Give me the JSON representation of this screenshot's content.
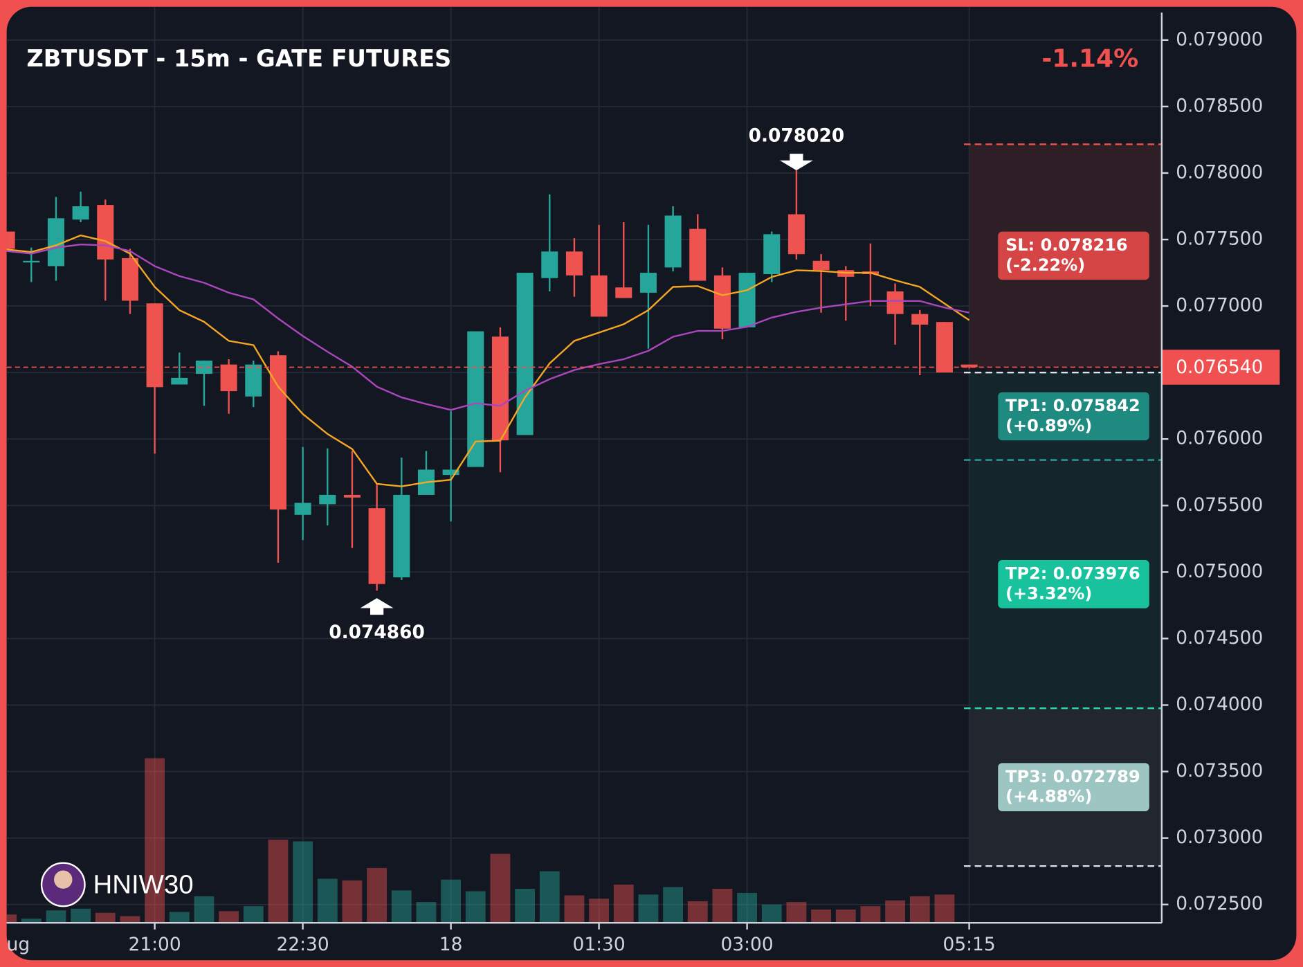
{
  "chart_data": {
    "type": "candlestick",
    "title": "ZBTUSDT - 15m - GATE FUTURES",
    "change": "-1.14%",
    "watermark": "HNIW30",
    "categories": [
      "ug",
      null,
      null,
      null,
      null,
      null,
      "21:00",
      null,
      null,
      null,
      null,
      null,
      "22:30",
      null,
      null,
      null,
      null,
      null,
      "18",
      null,
      null,
      null,
      null,
      null,
      "01:30",
      null,
      null,
      null,
      null,
      null,
      "03:00",
      null,
      null,
      null,
      null,
      null,
      null,
      null,
      null,
      "05:15"
    ],
    "candles": {
      "open": [
        0.07756,
        0.07733,
        0.0773,
        0.07765,
        0.07776,
        0.07736,
        0.07702,
        0.07641,
        0.07649,
        0.07656,
        0.07632,
        0.07663,
        0.07543,
        0.07551,
        0.07558,
        0.07548,
        0.07496,
        0.07558,
        0.07573,
        0.07579,
        0.07677,
        0.07603,
        0.07721,
        0.07741,
        0.07723,
        0.07714,
        0.0771,
        0.07729,
        0.07758,
        0.07723,
        0.07684,
        0.07724,
        0.07769,
        0.07734,
        0.07727,
        0.07726,
        0.07711,
        0.07694,
        0.07688,
        0.07656
      ],
      "high": [
        0.07756,
        0.07744,
        0.07782,
        0.07786,
        0.0778,
        0.07743,
        0.07702,
        0.07665,
        0.07659,
        0.0766,
        0.07659,
        0.07666,
        0.07594,
        0.07593,
        0.07591,
        0.07566,
        0.07586,
        0.07591,
        0.07621,
        0.07681,
        0.07684,
        0.07725,
        0.07784,
        0.07751,
        0.07761,
        0.07763,
        0.07761,
        0.07775,
        0.07769,
        0.07729,
        0.07725,
        0.07756,
        0.07802,
        0.07739,
        0.0773,
        0.07747,
        0.07717,
        0.07697,
        0.07688,
        0.07656
      ],
      "low": [
        0.07742,
        0.07718,
        0.07719,
        0.07763,
        0.07704,
        0.07694,
        0.07589,
        0.07641,
        0.07625,
        0.07619,
        0.07624,
        0.07507,
        0.07524,
        0.07535,
        0.07518,
        0.07486,
        0.07494,
        0.07558,
        0.07538,
        0.07579,
        0.07575,
        0.07603,
        0.07711,
        0.07707,
        0.07692,
        0.07706,
        0.07668,
        0.07726,
        0.07719,
        0.07675,
        0.07684,
        0.07718,
        0.07735,
        0.07695,
        0.07689,
        0.077,
        0.07671,
        0.07648,
        0.07653,
        0.07653
      ],
      "close": [
        0.07743,
        0.07734,
        0.07766,
        0.07775,
        0.07735,
        0.07704,
        0.07639,
        0.07646,
        0.07659,
        0.07636,
        0.07656,
        0.07547,
        0.07552,
        0.07558,
        0.07556,
        0.07491,
        0.07558,
        0.07577,
        0.07577,
        0.07681,
        0.07599,
        0.07725,
        0.07741,
        0.07723,
        0.07692,
        0.07706,
        0.07725,
        0.07768,
        0.07719,
        0.07683,
        0.07725,
        0.07754,
        0.07739,
        0.07727,
        0.07722,
        0.07724,
        0.07694,
        0.07686,
        0.0765,
        0.07654
      ]
    },
    "volume": [
      10,
      5,
      15,
      17,
      12,
      8,
      198,
      13,
      32,
      14,
      20,
      100,
      98,
      53,
      51,
      66,
      39,
      25,
      52,
      38,
      83,
      41,
      62,
      33,
      29,
      46,
      34,
      43,
      26,
      41,
      36,
      22,
      25,
      16,
      16,
      20,
      27,
      32,
      34,
      null
    ],
    "up_color": "#26a69a",
    "down_color": "#ef5350",
    "series": [
      {
        "color": "#f5a623",
        "values": [
          0.077425,
          0.077406,
          0.077456,
          0.077531,
          0.077488,
          0.077394,
          0.077144,
          0.076969,
          0.076881,
          0.076738,
          0.076706,
          0.076394,
          0.076188,
          0.076038,
          0.075925,
          0.075663,
          0.075644,
          0.075675,
          0.075694,
          0.075981,
          0.075988,
          0.076313,
          0.076569,
          0.076738,
          0.0768,
          0.076863,
          0.076969,
          0.077144,
          0.07715,
          0.077081,
          0.077119,
          0.077219,
          0.077269,
          0.077263,
          0.07725,
          0.07725,
          0.077194,
          0.077144,
          0.077019,
          0.076894
        ]
      },
      {
        "color": "#ab47bc",
        "values": [
          0.077413,
          0.077394,
          0.077438,
          0.077463,
          0.077456,
          0.077413,
          0.0773,
          0.077225,
          0.077175,
          0.0771,
          0.07705,
          0.076906,
          0.076775,
          0.076656,
          0.076544,
          0.076394,
          0.076313,
          0.076263,
          0.076219,
          0.076269,
          0.07625,
          0.076363,
          0.07645,
          0.076519,
          0.076563,
          0.0766,
          0.076663,
          0.076769,
          0.076813,
          0.076813,
          0.076844,
          0.076913,
          0.076956,
          0.076988,
          0.077013,
          0.077038,
          0.077038,
          0.077038,
          0.076988,
          0.07695
        ]
      }
    ],
    "ylim": [
      0.0725,
      0.079
    ],
    "yticks": [
      {
        "value": 0.079,
        "label": "0.079000"
      },
      {
        "value": 0.0785,
        "label": "0.078500"
      },
      {
        "value": 0.078,
        "label": "0.078000"
      },
      {
        "value": 0.0775,
        "label": "0.077500"
      },
      {
        "value": 0.077,
        "label": "0.077000"
      },
      {
        "value": 0.0765,
        "label": "0.076500"
      },
      {
        "value": 0.076,
        "label": "0.076000"
      },
      {
        "value": 0.0755,
        "label": "0.075500"
      },
      {
        "value": 0.075,
        "label": "0.075000"
      },
      {
        "value": 0.0745,
        "label": "0.074500"
      },
      {
        "value": 0.074,
        "label": "0.074000"
      },
      {
        "value": 0.0735,
        "label": "0.073500"
      },
      {
        "value": 0.073,
        "label": "0.073000"
      },
      {
        "value": 0.0725,
        "label": "0.072500"
      }
    ],
    "grid": true,
    "last_price": {
      "value": 0.07654,
      "label": "0.076540"
    },
    "entry": 0.0765,
    "annotations": [
      {
        "index": 32,
        "value": 0.07802,
        "label": "0.078020",
        "side": "above"
      },
      {
        "index": 15,
        "value": 0.07486,
        "label": "0.074860",
        "side": "below"
      }
    ],
    "levels": [
      {
        "value": 0.078216,
        "label": "SL: 0.078216",
        "change": "(-2.22%)",
        "color": "#d64545",
        "line_color": "#ef5350",
        "zone_color": "#2e1f27"
      },
      {
        "value": 0.075842,
        "label": "TP1: 0.075842",
        "change": "(+0.89%)",
        "color": "#1f8a80",
        "line_color": "#26a69a",
        "zone_color": "#14252b"
      },
      {
        "value": 0.073976,
        "label": "TP2: 0.073976",
        "change": "(+3.32%)",
        "color": "#18c29c",
        "line_color": "#2bd6b0",
        "zone_color": "#14252b"
      },
      {
        "value": 0.072789,
        "label": "TP3: 0.072789",
        "change": "(+4.88%)",
        "color": "#9dc6c2",
        "line_color": "#d8dde6",
        "zone_color": "#22262f"
      }
    ]
  }
}
